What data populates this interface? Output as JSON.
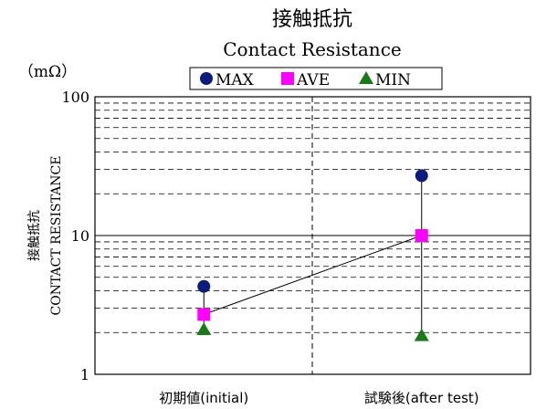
{
  "chart_data": {
    "type": "line",
    "title": "接触抵抗",
    "subtitle": "Contact Resistance",
    "unit_label": "（mΩ）",
    "ylabel_jp": "接触抵抗",
    "ylabel_en": "CONTACT RESISTANCE",
    "y_scale": "log",
    "ylim": [
      1,
      100
    ],
    "y_ticks": [
      {
        "value": 1,
        "label": "1"
      },
      {
        "value": 10,
        "label": "10"
      },
      {
        "value": 100,
        "label": "100"
      }
    ],
    "categories": [
      "初期値(initial)",
      "試験後(after test)"
    ],
    "legend_position": "top",
    "series": [
      {
        "name": "MAX",
        "marker": "circle",
        "color": "#0d1b7a",
        "values": [
          4.3,
          27
        ]
      },
      {
        "name": "AVE",
        "marker": "square",
        "color": "#ff00ff",
        "values": [
          2.7,
          10
        ]
      },
      {
        "name": "MIN",
        "marker": "triangle",
        "color": "#1a7a1a",
        "values": [
          2.1,
          1.9
        ]
      }
    ],
    "grid": true
  }
}
